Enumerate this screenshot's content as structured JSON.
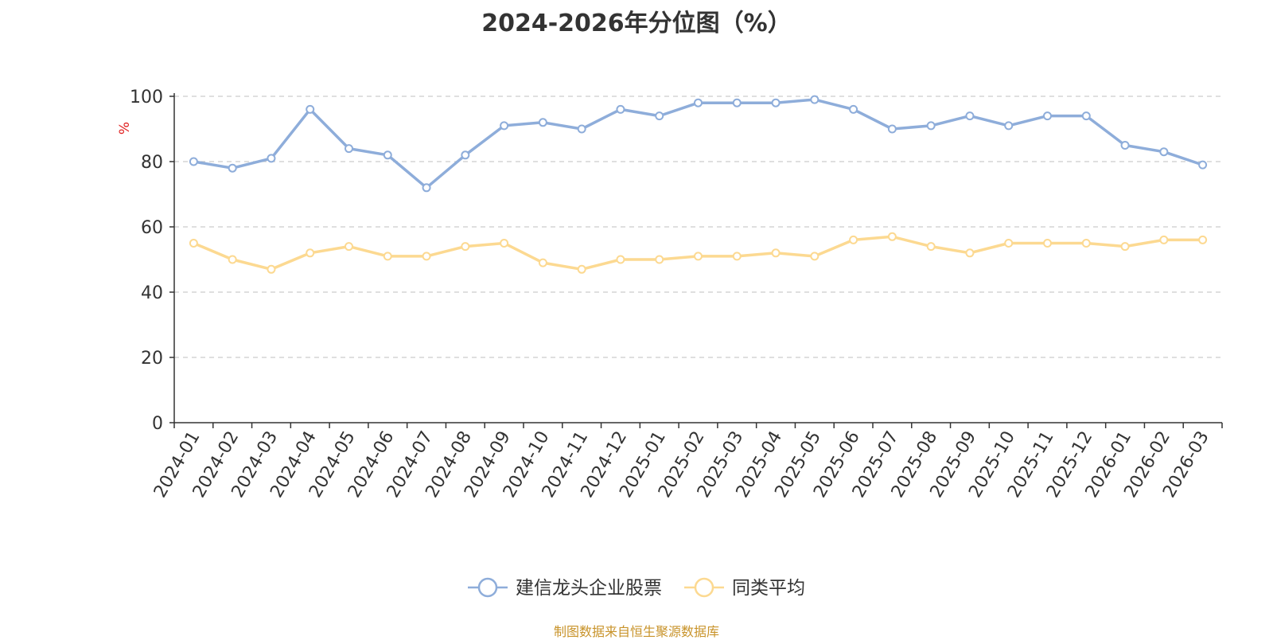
{
  "chart_data": {
    "type": "line",
    "title": "2024-2026年分位图（%）",
    "ylabel": "%",
    "ylim": [
      0,
      100
    ],
    "yticks": [
      0,
      20,
      40,
      60,
      80,
      100
    ],
    "grid": true,
    "legend_position": "bottom-center",
    "categories": [
      "2024-01",
      "2024-02",
      "2024-03",
      "2024-04",
      "2024-05",
      "2024-06",
      "2024-07",
      "2024-08",
      "2024-09",
      "2024-10",
      "2024-11",
      "2024-12",
      "2025-01",
      "2025-02",
      "2025-03",
      "2025-04",
      "2025-05",
      "2025-06",
      "2025-07",
      "2025-08",
      "2025-09",
      "2025-10",
      "2025-11",
      "2025-12",
      "2026-01",
      "2026-02",
      "2026-03"
    ],
    "series": [
      {
        "name": "建信龙头企业股票",
        "color": "#8eadda",
        "values": [
          80,
          78,
          81,
          96,
          84,
          82,
          72,
          82,
          91,
          92,
          90,
          96,
          94,
          98,
          98,
          98,
          99,
          96,
          90,
          91,
          94,
          91,
          94,
          94,
          85,
          83,
          79
        ]
      },
      {
        "name": "同类平均",
        "color": "#fcd991",
        "values": [
          55,
          50,
          47,
          52,
          54,
          51,
          51,
          54,
          55,
          49,
          47,
          50,
          50,
          51,
          51,
          52,
          51,
          56,
          57,
          54,
          52,
          55,
          55,
          55,
          54,
          56,
          56
        ]
      }
    ]
  },
  "source_text": "制图数据来自恒生聚源数据库"
}
